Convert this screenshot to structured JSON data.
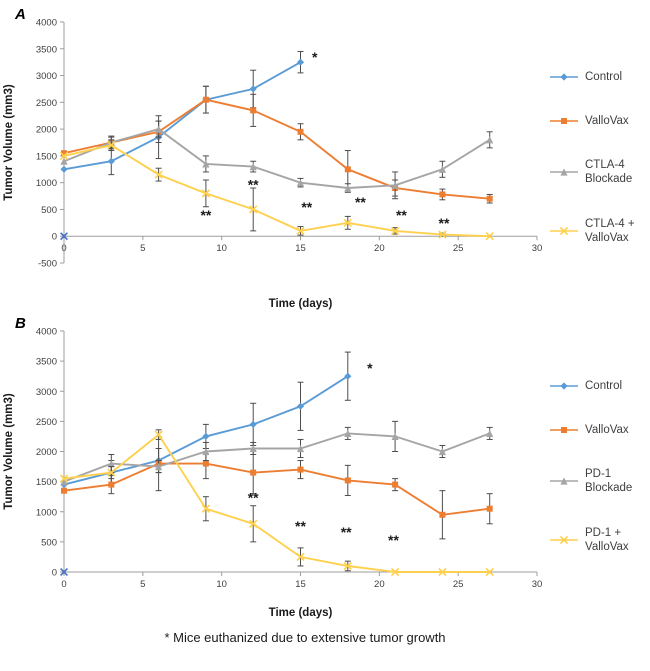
{
  "footnote": "* Mice euthanized due to extensive tumor growth",
  "chart_data": [
    {
      "type": "line",
      "panel_label": "A",
      "xlabel": "Time (days)",
      "ylabel": "Tumor Volume (mm3)",
      "xlim": [
        0,
        30
      ],
      "ylim": [
        -500,
        4000
      ],
      "xtick_step": 5,
      "ytick_step": 500,
      "grid": false,
      "legend_position": "right",
      "series": [
        {
          "name": "Control",
          "legend_label": "Control",
          "color": "#5B9BD5",
          "marker": "diamond",
          "x": [
            0,
            3,
            6,
            9,
            12,
            15
          ],
          "values": [
            1250,
            1400,
            1850,
            2550,
            2750,
            3250
          ],
          "errors": [
            0,
            250,
            400,
            250,
            350,
            200
          ]
        },
        {
          "name": "ValloVax",
          "legend_label": "ValloVax",
          "color": "#ED7D31",
          "marker": "square",
          "x": [
            0,
            3,
            6,
            9,
            12,
            15,
            18,
            21,
            24,
            27
          ],
          "values": [
            1550,
            1750,
            1950,
            2550,
            2350,
            1950,
            1250,
            900,
            780,
            700
          ],
          "errors": [
            0,
            100,
            200,
            250,
            300,
            150,
            350,
            150,
            100,
            80
          ]
        },
        {
          "name": "CTLA-4 Blockade",
          "legend_label": "CTLA-4\nBlockade",
          "color": "#A5A5A5",
          "marker": "triangle",
          "x": [
            0,
            3,
            6,
            9,
            12,
            15,
            18,
            21,
            24,
            27
          ],
          "values": [
            1400,
            1750,
            2000,
            1350,
            1300,
            1000,
            900,
            950,
            1250,
            1800
          ],
          "errors": [
            0,
            120,
            150,
            150,
            100,
            80,
            80,
            250,
            150,
            150
          ]
        },
        {
          "name": "CTLA-4 + ValloVax",
          "legend_label": "CTLA-4 +\nValloVax",
          "color": "#FFD04D",
          "marker": "x",
          "x": [
            0,
            3,
            6,
            9,
            12,
            15,
            18,
            21,
            24,
            27
          ],
          "values": [
            1500,
            1700,
            1150,
            800,
            500,
            100,
            250,
            100,
            30,
            0
          ],
          "errors": [
            0,
            100,
            120,
            250,
            400,
            80,
            120,
            60,
            30,
            0
          ]
        }
      ],
      "annotations": [
        {
          "text": "*",
          "x": 15.9,
          "y": 3250
        },
        {
          "text": "**",
          "x": 9,
          "y": 300
        },
        {
          "text": "**",
          "x": 12,
          "y": 870
        },
        {
          "text": "**",
          "x": 15.4,
          "y": 450
        },
        {
          "text": "**",
          "x": 18.8,
          "y": 550
        },
        {
          "text": "**",
          "x": 21.4,
          "y": 300
        },
        {
          "text": "**",
          "x": 24.1,
          "y": 150
        }
      ],
      "origin_marker": {
        "symbol": "x",
        "x": 0,
        "y": 0,
        "color": "#4472C4"
      }
    },
    {
      "type": "line",
      "panel_label": "B",
      "xlabel": "Time (days)",
      "ylabel": "Tumor Volume (mm3)",
      "xlim": [
        0,
        30
      ],
      "ylim": [
        0,
        4000
      ],
      "xtick_step": 5,
      "ytick_step": 500,
      "grid": false,
      "legend_position": "right",
      "series": [
        {
          "name": "Control",
          "legend_label": "Control",
          "color": "#5B9BD5",
          "marker": "diamond",
          "x": [
            0,
            3,
            6,
            9,
            12,
            15,
            18
          ],
          "values": [
            1450,
            1650,
            1850,
            2250,
            2450,
            2750,
            3250
          ],
          "errors": [
            0,
            200,
            200,
            200,
            350,
            400,
            400
          ]
        },
        {
          "name": "ValloVax",
          "legend_label": "ValloVax",
          "color": "#ED7D31",
          "marker": "square",
          "x": [
            0,
            3,
            6,
            9,
            12,
            15,
            18,
            21,
            24,
            27
          ],
          "values": [
            1350,
            1450,
            1800,
            1800,
            1650,
            1700,
            1520,
            1450,
            950,
            1050
          ],
          "errors": [
            0,
            150,
            450,
            250,
            350,
            150,
            250,
            100,
            400,
            250
          ]
        },
        {
          "name": "PD-1 Blockade",
          "legend_label": "PD-1\nBlockade",
          "color": "#A5A5A5",
          "marker": "triangle",
          "x": [
            0,
            3,
            6,
            9,
            12,
            15,
            18,
            21,
            24,
            27
          ],
          "values": [
            1500,
            1800,
            1750,
            2000,
            2050,
            2050,
            2300,
            2250,
            2000,
            2300
          ],
          "errors": [
            0,
            150,
            100,
            150,
            100,
            150,
            100,
            250,
            100,
            100
          ]
        },
        {
          "name": "PD-1 + ValloVax",
          "legend_label": "PD-1 +\nValloVax",
          "color": "#FFD04D",
          "marker": "x",
          "x": [
            0,
            3,
            6,
            9,
            12,
            15,
            18,
            21,
            24,
            27
          ],
          "values": [
            1550,
            1650,
            2280,
            1050,
            800,
            250,
            100,
            0,
            0,
            0
          ],
          "errors": [
            0,
            100,
            80,
            200,
            300,
            150,
            80,
            0,
            0,
            0
          ]
        }
      ],
      "annotations": [
        {
          "text": "*",
          "x": 19.4,
          "y": 3300
        },
        {
          "text": "**",
          "x": 12,
          "y": 1150
        },
        {
          "text": "**",
          "x": 15,
          "y": 680
        },
        {
          "text": "**",
          "x": 17.9,
          "y": 580
        },
        {
          "text": "**",
          "x": 20.9,
          "y": 450
        }
      ],
      "origin_marker": {
        "symbol": "x",
        "x": 0,
        "y": 0,
        "color": "#4472C4"
      }
    }
  ]
}
